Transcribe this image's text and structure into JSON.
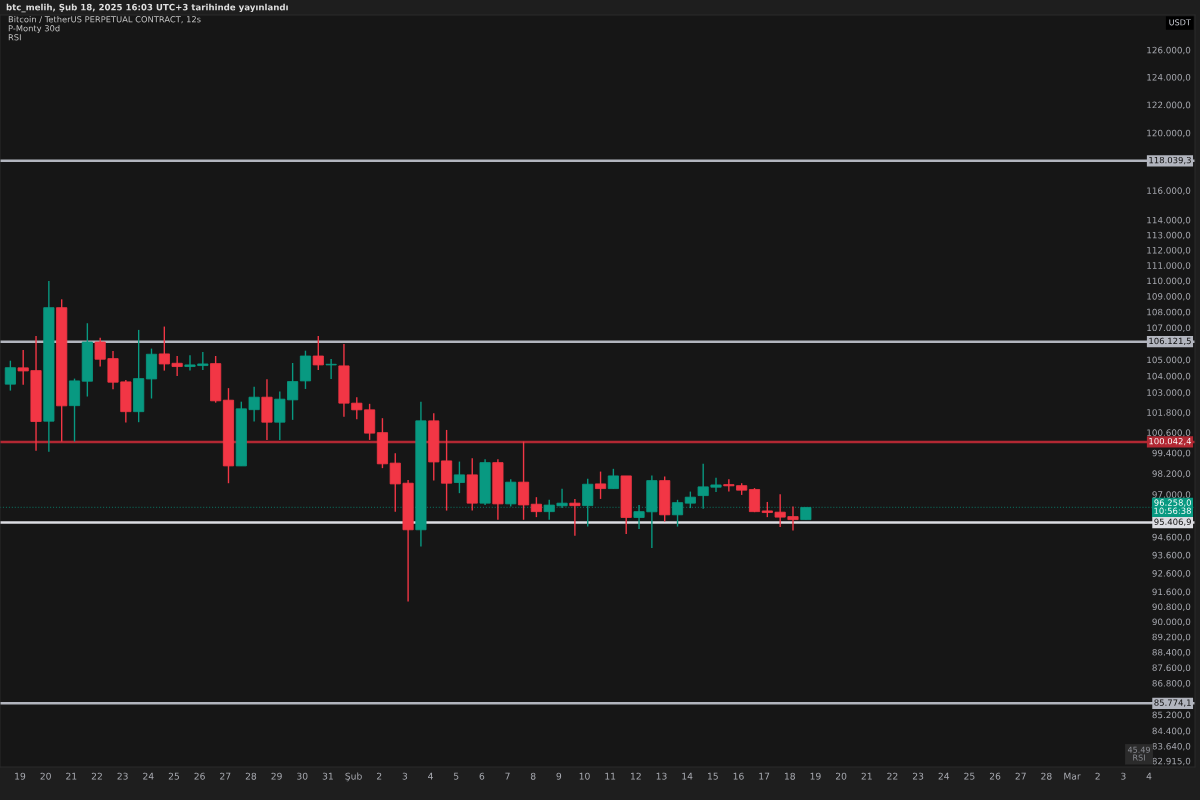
{
  "chart_data": {
    "type": "candlestick",
    "title": "btc_melih, Şub 18, 2025 16:03 UTC+3 tarihinde yayınlandı",
    "subtitle": "Bitcoin / TetherUS PERPETUAL CONTRACT, 12s",
    "ylabel": "USDT",
    "annotations": [
      "P-Monty 30d",
      "RSI",
      "45.49\nRSI"
    ],
    "log": true,
    "grid": false,
    "x": [
      "2025-01-18T15:00",
      "2025-01-19T03:00",
      "2025-01-19T15:00",
      "2025-01-20T03:00",
      "2025-01-20T15:00",
      "2025-01-21T03:00",
      "2025-01-21T15:00",
      "2025-01-22T03:00",
      "2025-01-22T15:00",
      "2025-01-23T03:00",
      "2025-01-23T15:00",
      "2025-01-24T03:00",
      "2025-01-24T15:00",
      "2025-01-25T03:00",
      "2025-01-25T15:00",
      "2025-01-26T03:00",
      "2025-01-26T15:00",
      "2025-01-27T03:00",
      "2025-01-27T15:00",
      "2025-01-28T03:00",
      "2025-01-28T15:00",
      "2025-01-29T03:00",
      "2025-01-29T15:00",
      "2025-01-30T03:00",
      "2025-01-30T15:00",
      "2025-01-31T03:00",
      "2025-01-31T15:00",
      "2025-02-01T03:00",
      "2025-02-01T15:00",
      "2025-02-02T03:00",
      "2025-02-02T15:00",
      "2025-02-03T03:00",
      "2025-02-03T15:00",
      "2025-02-04T03:00",
      "2025-02-04T15:00",
      "2025-02-05T03:00",
      "2025-02-05T15:00",
      "2025-02-06T03:00",
      "2025-02-06T15:00",
      "2025-02-07T03:00",
      "2025-02-07T15:00",
      "2025-02-08T03:00",
      "2025-02-08T15:00",
      "2025-02-09T03:00",
      "2025-02-09T15:00",
      "2025-02-10T03:00",
      "2025-02-10T15:00",
      "2025-02-11T03:00",
      "2025-02-11T15:00",
      "2025-02-12T03:00",
      "2025-02-12T15:00",
      "2025-02-13T03:00",
      "2025-02-13T15:00",
      "2025-02-14T03:00",
      "2025-02-14T15:00",
      "2025-02-15T03:00",
      "2025-02-15T15:00",
      "2025-02-16T03:00",
      "2025-02-16T15:00",
      "2025-02-17T03:00",
      "2025-02-17T15:00",
      "2025-02-18T03:00",
      "2025-02-18T15:00"
    ],
    "ohlc": [
      [
        103500,
        104940,
        103110,
        104510
      ],
      [
        104500,
        105610,
        103460,
        104310
      ],
      [
        104330,
        106480,
        99530,
        101250
      ],
      [
        101270,
        109980,
        99460,
        108270
      ],
      [
        108270,
        108800,
        100060,
        102190
      ],
      [
        102200,
        103840,
        100060,
        103700
      ],
      [
        103680,
        107280,
        102750,
        106100
      ],
      [
        106100,
        106370,
        104580,
        105030
      ],
      [
        105070,
        105540,
        103190,
        103620
      ],
      [
        103640,
        103760,
        101190,
        101840
      ],
      [
        101840,
        106860,
        101210,
        103840
      ],
      [
        103820,
        105690,
        102630,
        105340
      ],
      [
        105360,
        107070,
        104330,
        104740
      ],
      [
        104780,
        105230,
        104000,
        104580
      ],
      [
        104580,
        105280,
        104330,
        104680
      ],
      [
        104640,
        105480,
        104370,
        104740
      ],
      [
        104760,
        105230,
        102380,
        102490
      ],
      [
        102530,
        103260,
        97640,
        98640
      ],
      [
        98640,
        102440,
        98640,
        102010
      ],
      [
        101960,
        103350,
        101250,
        102710
      ],
      [
        102710,
        103800,
        100160,
        101210
      ],
      [
        101210,
        103050,
        100160,
        102590
      ],
      [
        102550,
        104800,
        101350,
        103660
      ],
      [
        103700,
        105560,
        103210,
        105230
      ],
      [
        105230,
        106480,
        104370,
        104680
      ],
      [
        104680,
        105050,
        103820,
        104720
      ],
      [
        104620,
        105980,
        101530,
        102350
      ],
      [
        102350,
        102710,
        101390,
        101950
      ],
      [
        101950,
        102310,
        100160,
        100560
      ],
      [
        100590,
        101450,
        98510,
        98760
      ],
      [
        98800,
        99380,
        96020,
        97600
      ],
      [
        97640,
        97830,
        91070,
        95000
      ],
      [
        95000,
        102440,
        94070,
        101290
      ],
      [
        101290,
        101750,
        97790,
        98870
      ],
      [
        98930,
        100750,
        96080,
        97640
      ],
      [
        97680,
        98890,
        97070,
        98120
      ],
      [
        98120,
        99090,
        96080,
        96500
      ],
      [
        96500,
        99030,
        96400,
        98830
      ],
      [
        98830,
        99030,
        95560,
        96460
      ],
      [
        96460,
        97870,
        96310,
        97700
      ],
      [
        97700,
        100060,
        95560,
        96400
      ],
      [
        96440,
        96840,
        95710,
        96020
      ],
      [
        96020,
        96690,
        95560,
        96390
      ],
      [
        96350,
        97320,
        96220,
        96500
      ],
      [
        96500,
        96740,
        94660,
        96360
      ],
      [
        96360,
        97890,
        95180,
        97580
      ],
      [
        97600,
        98310,
        96740,
        97330
      ],
      [
        97330,
        98470,
        97320,
        98060
      ],
      [
        98060,
        98060,
        94770,
        95690
      ],
      [
        95690,
        96400,
        95050,
        96020
      ],
      [
        96010,
        98080,
        93980,
        97790
      ],
      [
        97790,
        98020,
        95460,
        95840
      ],
      [
        95840,
        96690,
        95180,
        96530
      ],
      [
        96500,
        97160,
        96220,
        96840
      ],
      [
        96930,
        98760,
        96180,
        97430
      ],
      [
        97410,
        97960,
        97130,
        97540
      ],
      [
        97560,
        97870,
        97160,
        97490
      ],
      [
        97500,
        97640,
        96970,
        97240
      ],
      [
        97280,
        97360,
        95990,
        96020
      ],
      [
        96060,
        96570,
        95710,
        95970
      ],
      [
        95990,
        97010,
        95150,
        95710
      ],
      [
        95740,
        96310,
        94960,
        95570
      ],
      [
        95570,
        96258,
        95570,
        96258
      ]
    ],
    "colors": [
      "#089981",
      "#f23645",
      "#f23645",
      "#089981",
      "#f23645",
      "#089981",
      "#089981",
      "#f23645",
      "#f23645",
      "#f23645",
      "#089981",
      "#089981",
      "#f23645",
      "#f23645",
      "#089981",
      "#089981",
      "#f23645",
      "#f23645",
      "#089981",
      "#089981",
      "#f23645",
      "#089981",
      "#089981",
      "#089981",
      "#f23645",
      "#089981",
      "#f23645",
      "#f23645",
      "#f23645",
      "#f23645",
      "#f23645",
      "#f23645",
      "#089981",
      "#f23645",
      "#f23645",
      "#089981",
      "#f23645",
      "#089981",
      "#f23645",
      "#089981",
      "#f23645",
      "#f23645",
      "#089981",
      "#089981",
      "#f23645",
      "#089981",
      "#f23645",
      "#089981",
      "#f23645",
      "#089981",
      "#089981",
      "#f23645",
      "#089981",
      "#089981",
      "#089981",
      "#089981",
      "#f23645",
      "#f23645",
      "#f23645",
      "#f23645",
      "#f23645",
      "#f23645",
      "#089981"
    ],
    "ref_lines": [
      {
        "axis": "y",
        "value": 118039.3,
        "label": "118.039,3",
        "color": "#b2b5be",
        "line_style": "solid"
      },
      {
        "axis": "y",
        "value": 106121.5,
        "label": "106.121,5",
        "color": "#b2b5be",
        "line_style": "solid"
      },
      {
        "axis": "y",
        "value": 100042.4,
        "label": "100.042,4",
        "color": "#b22833",
        "line_style": "solid"
      },
      {
        "axis": "y",
        "value": 96258,
        "label": "96.258,0\n10:56:38",
        "color": "#089981",
        "line_style": "dotted"
      },
      {
        "axis": "y",
        "value": 95406.9,
        "label": "95.406,9",
        "color": "#dcdde2",
        "line_style": "solid"
      },
      {
        "axis": "y",
        "value": 85774.1,
        "label": "85.774,1",
        "color": "#b2b5be",
        "line_style": "solid"
      }
    ],
    "xlim": [
      "2025-01-18T05:18",
      "2025-03-05T19:00"
    ],
    "xticks": [
      {
        "value": "2025-01-19",
        "label": "19"
      },
      {
        "value": "2025-01-20",
        "label": "20"
      },
      {
        "value": "2025-01-21",
        "label": "21"
      },
      {
        "value": "2025-01-22",
        "label": "22"
      },
      {
        "value": "2025-01-23",
        "label": "23"
      },
      {
        "value": "2025-01-24",
        "label": "24"
      },
      {
        "value": "2025-01-25",
        "label": "25"
      },
      {
        "value": "2025-01-26",
        "label": "26"
      },
      {
        "value": "2025-01-27",
        "label": "27"
      },
      {
        "value": "2025-01-28",
        "label": "28"
      },
      {
        "value": "2025-01-29",
        "label": "29"
      },
      {
        "value": "2025-01-30",
        "label": "30"
      },
      {
        "value": "2025-01-31",
        "label": "31"
      },
      {
        "value": "2025-02-01",
        "label": "Şub"
      },
      {
        "value": "2025-02-02",
        "label": "2"
      },
      {
        "value": "2025-02-03",
        "label": "3"
      },
      {
        "value": "2025-02-04",
        "label": "4"
      },
      {
        "value": "2025-02-05",
        "label": "5"
      },
      {
        "value": "2025-02-06",
        "label": "6"
      },
      {
        "value": "2025-02-07",
        "label": "7"
      },
      {
        "value": "2025-02-08",
        "label": "8"
      },
      {
        "value": "2025-02-09",
        "label": "9"
      },
      {
        "value": "2025-02-10",
        "label": "10"
      },
      {
        "value": "2025-02-11",
        "label": "11"
      },
      {
        "value": "2025-02-12",
        "label": "12"
      },
      {
        "value": "2025-02-13",
        "label": "13"
      },
      {
        "value": "2025-02-14",
        "label": "14"
      },
      {
        "value": "2025-02-15",
        "label": "15"
      },
      {
        "value": "2025-02-16",
        "label": "16"
      },
      {
        "value": "2025-02-17",
        "label": "17"
      },
      {
        "value": "2025-02-18",
        "label": "18"
      },
      {
        "value": "2025-02-19",
        "label": "19"
      },
      {
        "value": "2025-02-20",
        "label": "20"
      },
      {
        "value": "2025-02-21",
        "label": "21"
      },
      {
        "value": "2025-02-22",
        "label": "22"
      },
      {
        "value": "2025-02-23",
        "label": "23"
      },
      {
        "value": "2025-02-24",
        "label": "24"
      },
      {
        "value": "2025-02-25",
        "label": "25"
      },
      {
        "value": "2025-02-26",
        "label": "26"
      },
      {
        "value": "2025-02-27",
        "label": "27"
      },
      {
        "value": "2025-02-28",
        "label": "28"
      },
      {
        "value": "2025-03-01",
        "label": "Mar"
      },
      {
        "value": "2025-03-02",
        "label": "2"
      },
      {
        "value": "2025-03-03",
        "label": "3"
      },
      {
        "value": "2025-03-04",
        "label": "4"
      }
    ],
    "ylim": [
      82620,
      128620
    ],
    "yticks": [
      {
        "value": 126000,
        "label": "126.000,0"
      },
      {
        "value": 124000,
        "label": "124.000,0"
      },
      {
        "value": 122000,
        "label": "122.000,0"
      },
      {
        "value": 120000,
        "label": "120.000,0"
      },
      {
        "value": 116000,
        "label": "116.000,0"
      },
      {
        "value": 114000,
        "label": "114.000,0"
      },
      {
        "value": 113000,
        "label": "113.000,0"
      },
      {
        "value": 112000,
        "label": "112.000,0"
      },
      {
        "value": 111000,
        "label": "111.000,0"
      },
      {
        "value": 110000,
        "label": "110.000,0"
      },
      {
        "value": 109000,
        "label": "109.000,0"
      },
      {
        "value": 108000,
        "label": "108.000,0"
      },
      {
        "value": 107000,
        "label": "107.000,0"
      },
      {
        "value": 105000,
        "label": "105.000,0"
      },
      {
        "value": 104000,
        "label": "104.000,0"
      },
      {
        "value": 103000,
        "label": "103.000,0"
      },
      {
        "value": 101800,
        "label": "101.800,0"
      },
      {
        "value": 100600,
        "label": "100.600,0"
      },
      {
        "value": 99400,
        "label": "99.400,0"
      },
      {
        "value": 98200,
        "label": "98.200,0"
      },
      {
        "value": 97000,
        "label": "97.000,0"
      },
      {
        "value": 94600,
        "label": "94.600,0"
      },
      {
        "value": 93600,
        "label": "93.600,0"
      },
      {
        "value": 92600,
        "label": "92.600,0"
      },
      {
        "value": 91600,
        "label": "91.600,0"
      },
      {
        "value": 90800,
        "label": "90.800,0"
      },
      {
        "value": 90000,
        "label": "90.000,0"
      },
      {
        "value": 89200,
        "label": "89.200,0"
      },
      {
        "value": 88400,
        "label": "88.400,0"
      },
      {
        "value": 87600,
        "label": "87.600,0"
      },
      {
        "value": 86800,
        "label": "86.800,0"
      },
      {
        "value": 85200,
        "label": "85.200,0"
      },
      {
        "value": 84400,
        "label": "84.400,0"
      },
      {
        "value": 83640,
        "label": "83.640,0"
      },
      {
        "value": 82915,
        "label": "82.915,0"
      }
    ]
  }
}
